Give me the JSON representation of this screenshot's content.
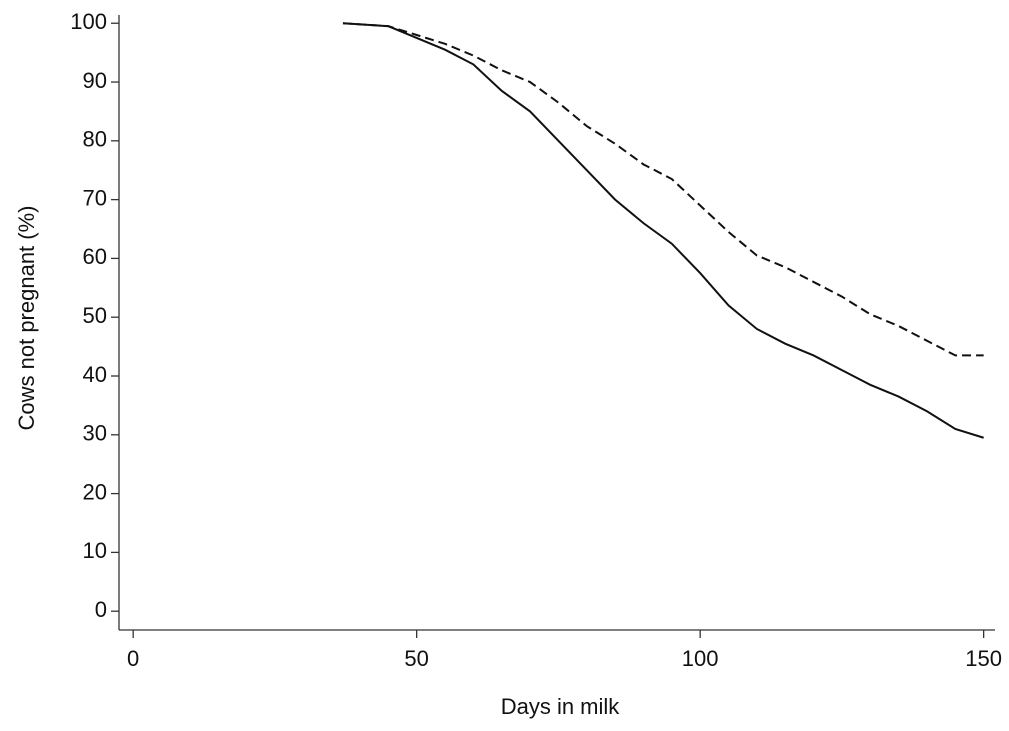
{
  "chart_data": {
    "type": "line",
    "x_label": "Days in milk",
    "y_label": "Cows not pregnant (%)",
    "x": [
      37,
      45,
      50,
      55,
      60,
      65,
      70,
      75,
      80,
      85,
      90,
      95,
      100,
      105,
      110,
      115,
      120,
      125,
      130,
      135,
      140,
      145,
      150
    ],
    "series": [
      {
        "color": "#111111",
        "line_style": "solid",
        "values": [
          100,
          99.5,
          97.5,
          95.5,
          93,
          88.5,
          85,
          80,
          75,
          70,
          66,
          62.5,
          57.5,
          52,
          48,
          45.5,
          43.5,
          41,
          38.5,
          36.5,
          34,
          31,
          29.5
        ]
      },
      {
        "color": "#111111",
        "line_style": "dashed",
        "values": [
          100,
          99.5,
          98,
          96.5,
          94.5,
          92,
          90,
          86.5,
          82.5,
          79.5,
          76,
          73.5,
          69,
          64.5,
          60.5,
          58.5,
          56,
          53.5,
          50.5,
          48.5,
          46,
          43.5,
          43.5
        ]
      }
    ],
    "xlim": [
      -2.5,
      152
    ],
    "xticks": [
      0,
      50,
      100,
      150
    ],
    "ylim": [
      -3.2,
      101.4
    ],
    "yticks": [
      0,
      10,
      20,
      30,
      40,
      50,
      60,
      70,
      80,
      90,
      100
    ],
    "grid": false
  }
}
